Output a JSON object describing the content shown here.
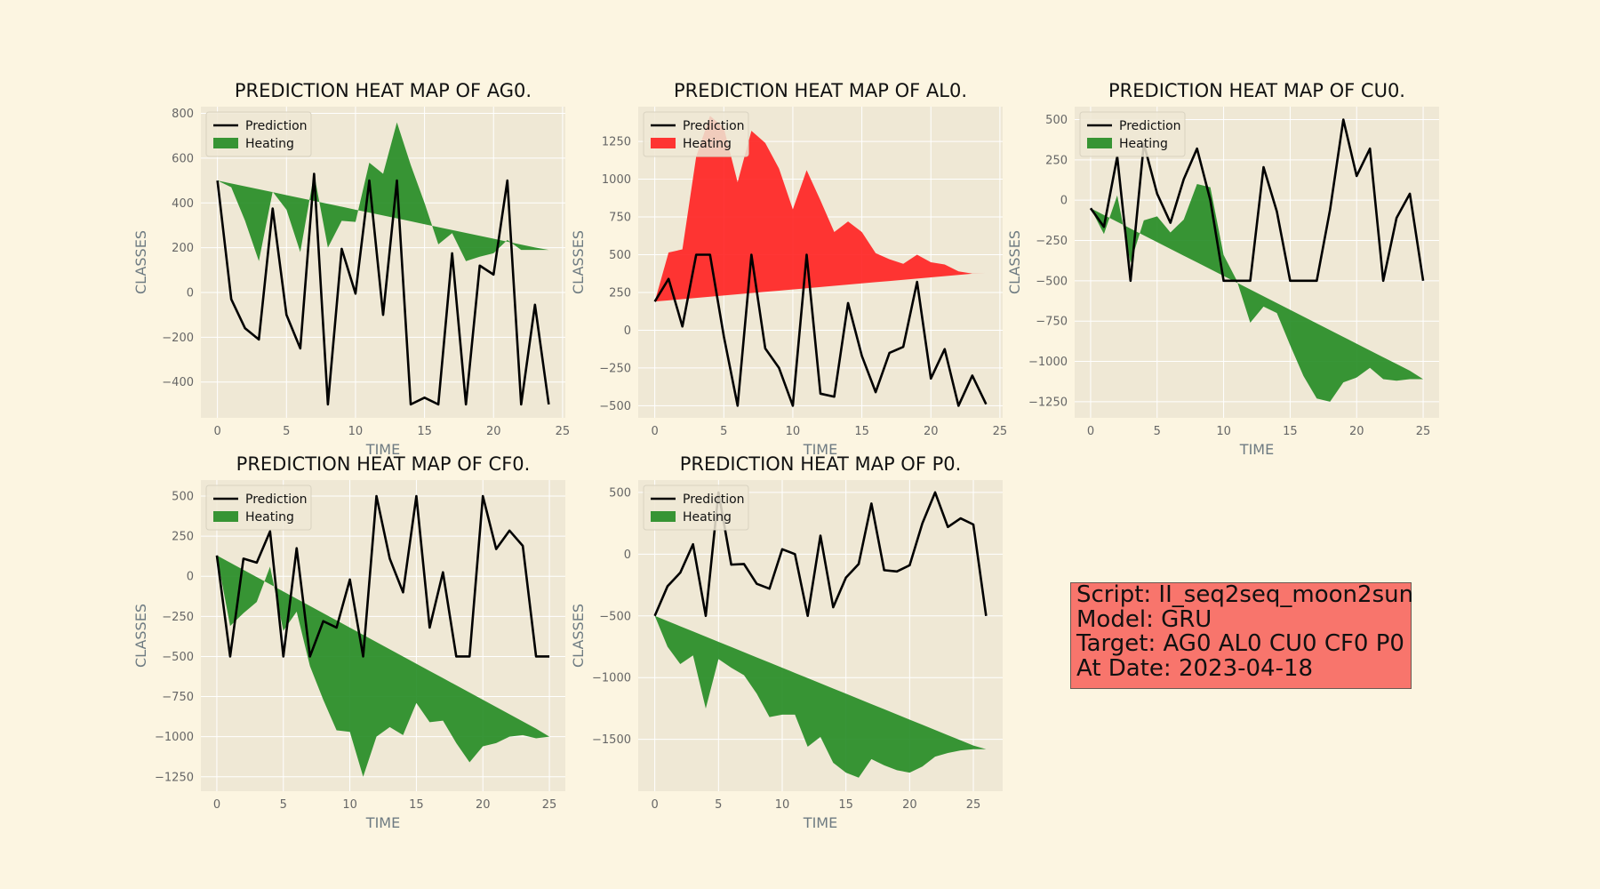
{
  "info": {
    "script": "Script: II_seq2seq_moon2sun",
    "model": "Model: GRU",
    "target": "Target: AG0 AL0 CU0 CF0 P0",
    "date": "At Date: 2023-04-18"
  },
  "colors": {
    "background": "#fcf5e1",
    "axes_bg": "#efe8d5",
    "grid": "#ffffff",
    "prediction": "#000000",
    "heat_green": "#228b22",
    "heat_red": "#ff2020",
    "tick_text": "#666666",
    "label_text": "#6e7b82"
  },
  "chart_data": [
    {
      "type": "line",
      "title": "PREDICTION HEAT MAP OF AG0.",
      "xlabel": "TIME",
      "ylabel": "CLASSES",
      "xlim": [
        -1.2,
        25.2
      ],
      "ylim": [
        -560,
        830
      ],
      "xticks": [
        0,
        5,
        10,
        15,
        20,
        25
      ],
      "yticks": [
        -400,
        -200,
        0,
        200,
        400,
        600,
        800
      ],
      "legend": [
        "Prediction",
        "Heating"
      ],
      "legend_position": "upper-left",
      "heat_color": "#228b22",
      "x": [
        0,
        1,
        2,
        3,
        4,
        5,
        6,
        7,
        8,
        9,
        10,
        11,
        12,
        13,
        14,
        15,
        16,
        17,
        18,
        19,
        20,
        21,
        22,
        23,
        24
      ],
      "prediction": [
        500,
        -30,
        -160,
        -210,
        375,
        -100,
        -250,
        530,
        -500,
        195,
        -5,
        500,
        -100,
        500,
        -500,
        -470,
        -500,
        175,
        -500,
        120,
        80,
        500,
        -500,
        -55,
        -500
      ],
      "heat_base": [
        500,
        487,
        474,
        461,
        448,
        435,
        422,
        409,
        396,
        383,
        370,
        357,
        344,
        331,
        318,
        305,
        292,
        279,
        266,
        253,
        240,
        227,
        214,
        201,
        190
      ],
      "heat_upper": [
        500,
        470,
        320,
        140,
        450,
        370,
        180,
        530,
        200,
        320,
        315,
        580,
        530,
        760,
        570,
        400,
        215,
        265,
        140,
        160,
        175,
        235,
        190,
        190,
        190
      ]
    },
    {
      "type": "line",
      "title": "PREDICTION HEAT MAP OF AL0.",
      "xlabel": "TIME",
      "ylabel": "CLASSES",
      "xlim": [
        -1.2,
        25.2
      ],
      "ylim": [
        -580,
        1480
      ],
      "xticks": [
        0,
        5,
        10,
        15,
        20,
        25
      ],
      "yticks": [
        -500,
        -250,
        0,
        250,
        500,
        750,
        1000,
        1250
      ],
      "legend": [
        "Prediction",
        "Heating"
      ],
      "legend_position": "upper-left",
      "heat_color": "#ff2020",
      "x": [
        0,
        1,
        2,
        3,
        4,
        5,
        6,
        7,
        8,
        9,
        10,
        11,
        12,
        13,
        14,
        15,
        16,
        17,
        18,
        19,
        20,
        21,
        22,
        23,
        24
      ],
      "prediction": [
        190,
        340,
        25,
        500,
        500,
        -40,
        -500,
        500,
        -120,
        -250,
        -500,
        500,
        -420,
        -440,
        180,
        -170,
        -410,
        -150,
        -110,
        320,
        -320,
        -125,
        -500,
        -300,
        -490
      ],
      "heat_base": [
        190,
        198,
        206,
        214,
        222,
        230,
        238,
        246,
        254,
        262,
        270,
        278,
        286,
        294,
        302,
        310,
        318,
        326,
        334,
        342,
        350,
        358,
        366,
        374,
        380
      ],
      "heat_upper": [
        190,
        515,
        535,
        1150,
        1420,
        1340,
        980,
        1320,
        1240,
        1070,
        800,
        1060,
        860,
        650,
        720,
        650,
        510,
        470,
        440,
        500,
        450,
        435,
        390,
        375,
        380
      ]
    },
    {
      "type": "line",
      "title": "PREDICTION HEAT MAP OF CU0.",
      "xlabel": "TIME",
      "ylabel": "CLASSES",
      "xlim": [
        -1.2,
        26.2
      ],
      "ylim": [
        -1350,
        580
      ],
      "xticks": [
        0,
        5,
        10,
        15,
        20,
        25
      ],
      "yticks": [
        -1250,
        -1000,
        -750,
        -500,
        -250,
        0,
        250,
        500
      ],
      "legend": [
        "Prediction",
        "Heating"
      ],
      "legend_position": "upper-left",
      "heat_color": "#228b22",
      "x": [
        0,
        1,
        2,
        3,
        4,
        5,
        6,
        7,
        8,
        9,
        10,
        11,
        12,
        13,
        14,
        15,
        16,
        17,
        18,
        19,
        20,
        21,
        22,
        23,
        24,
        25
      ],
      "prediction": [
        -50,
        -165,
        270,
        -500,
        350,
        40,
        -140,
        130,
        320,
        0,
        -500,
        -500,
        -500,
        205,
        -70,
        -500,
        -500,
        -500,
        -60,
        500,
        150,
        320,
        -500,
        -110,
        40,
        -500
      ],
      "heat_base": [
        -50,
        -92,
        -134,
        -176,
        -218,
        -260,
        -302,
        -344,
        -386,
        -428,
        -470,
        -512,
        -554,
        -596,
        -638,
        -680,
        -722,
        -764,
        -806,
        -848,
        -890,
        -932,
        -974,
        -1016,
        -1058,
        -1110
      ],
      "heat_upper": [
        -50,
        -210,
        30,
        -390,
        -125,
        -100,
        -200,
        -120,
        100,
        80,
        -340,
        -500,
        -760,
        -660,
        -700,
        -900,
        -1090,
        -1230,
        -1250,
        -1130,
        -1100,
        -1040,
        -1110,
        -1120,
        -1110,
        -1110
      ]
    },
    {
      "type": "line",
      "title": "PREDICTION HEAT MAP OF CF0.",
      "xlabel": "TIME",
      "ylabel": "CLASSES",
      "xlim": [
        -1.2,
        26.2
      ],
      "ylim": [
        -1340,
        600
      ],
      "xticks": [
        0,
        5,
        10,
        15,
        20,
        25
      ],
      "yticks": [
        -1250,
        -1000,
        -750,
        -500,
        -250,
        0,
        250,
        500
      ],
      "legend": [
        "Prediction",
        "Heating"
      ],
      "legend_position": "upper-left",
      "heat_color": "#228b22",
      "x": [
        0,
        1,
        2,
        3,
        4,
        5,
        6,
        7,
        8,
        9,
        10,
        11,
        12,
        13,
        14,
        15,
        16,
        17,
        18,
        19,
        20,
        21,
        22,
        23,
        24,
        25
      ],
      "prediction": [
        130,
        -500,
        110,
        85,
        280,
        -500,
        175,
        -500,
        -280,
        -320,
        -20,
        -500,
        500,
        110,
        -100,
        500,
        -320,
        25,
        -500,
        -500,
        500,
        170,
        285,
        190,
        -500,
        -500
      ],
      "heat_base": [
        130,
        85,
        40,
        -5,
        -50,
        -95,
        -140,
        -185,
        -230,
        -275,
        -320,
        -365,
        -410,
        -455,
        -500,
        -545,
        -590,
        -635,
        -680,
        -725,
        -770,
        -815,
        -860,
        -905,
        -950,
        -1000
      ],
      "heat_upper": [
        130,
        -310,
        -230,
        -160,
        60,
        -340,
        -220,
        -560,
        -770,
        -960,
        -970,
        -1250,
        -1000,
        -940,
        -990,
        -790,
        -910,
        -900,
        -1040,
        -1160,
        -1060,
        -1040,
        -1000,
        -990,
        -1010,
        -1000
      ]
    },
    {
      "type": "line",
      "title": "PREDICTION HEAT MAP OF P0.",
      "xlabel": "TIME",
      "ylabel": "CLASSES",
      "xlim": [
        -1.3,
        27.3
      ],
      "ylim": [
        -1920,
        600
      ],
      "xticks": [
        0,
        5,
        10,
        15,
        20,
        25
      ],
      "yticks": [
        -1500,
        -1000,
        -500,
        0,
        500
      ],
      "legend": [
        "Prediction",
        "Heating"
      ],
      "legend_position": "upper-left",
      "heat_color": "#228b22",
      "x": [
        0,
        1,
        2,
        3,
        4,
        5,
        6,
        7,
        8,
        9,
        10,
        11,
        12,
        13,
        14,
        15,
        16,
        17,
        18,
        19,
        20,
        21,
        22,
        23,
        24,
        25,
        26
      ],
      "prediction": [
        -500,
        -260,
        -150,
        80,
        -500,
        500,
        -85,
        -80,
        -240,
        -280,
        40,
        0,
        -500,
        150,
        -430,
        -190,
        -80,
        410,
        -130,
        -140,
        -90,
        250,
        500,
        220,
        290,
        240,
        -500
      ],
      "heat_base": [
        -500,
        -542,
        -584,
        -626,
        -668,
        -710,
        -752,
        -794,
        -836,
        -878,
        -920,
        -962,
        -1004,
        -1046,
        -1088,
        -1130,
        -1172,
        -1214,
        -1256,
        -1298,
        -1340,
        -1382,
        -1424,
        -1466,
        -1508,
        -1550,
        -1580
      ],
      "heat_upper": [
        -500,
        -750,
        -890,
        -820,
        -1250,
        -850,
        -920,
        -980,
        -1130,
        -1320,
        -1300,
        -1300,
        -1560,
        -1480,
        -1690,
        -1770,
        -1810,
        -1660,
        -1710,
        -1750,
        -1770,
        -1720,
        -1640,
        -1610,
        -1590,
        -1580,
        -1580
      ]
    }
  ]
}
